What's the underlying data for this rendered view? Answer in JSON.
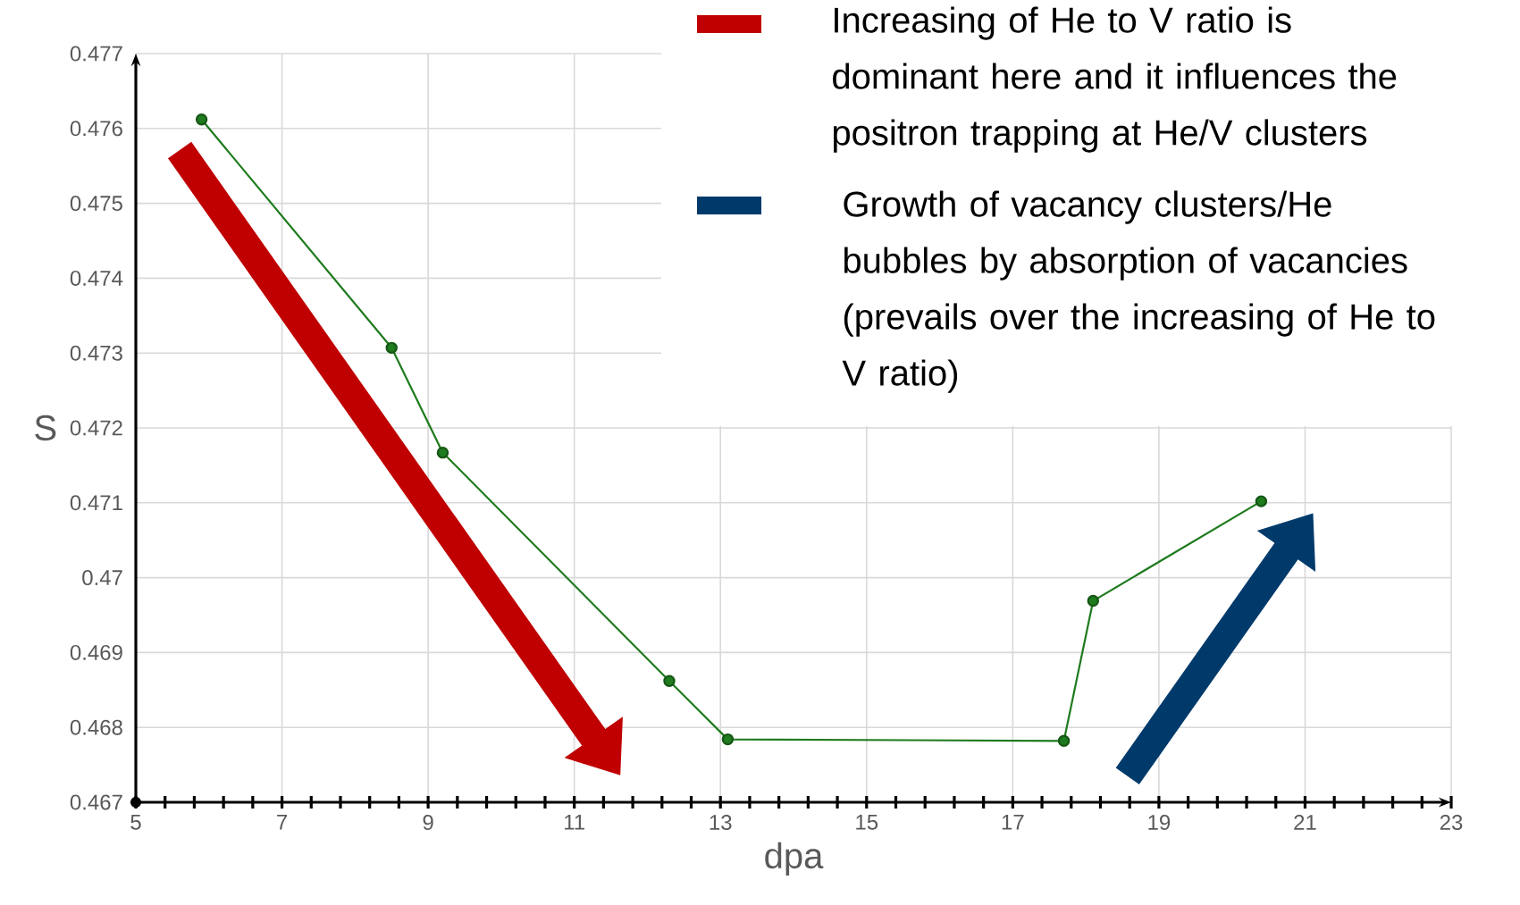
{
  "chart_data": {
    "type": "line",
    "xlabel": "dpa",
    "ylabel": "S",
    "x": [
      5.9,
      8.5,
      9.2,
      12.3,
      13.1,
      17.7,
      18.1,
      20.4
    ],
    "values": [
      0.47612,
      0.47307,
      0.47167,
      0.46862,
      0.46784,
      0.46782,
      0.46969,
      0.47102
    ],
    "color": "#1e7b1e",
    "marker": "circle",
    "line_style": "solid",
    "grid": true,
    "xlim": [
      5,
      23
    ],
    "ylim": [
      0.467,
      0.477
    ],
    "xticks": [
      5,
      7,
      9,
      11,
      13,
      15,
      17,
      19,
      21,
      23
    ],
    "yticks": [
      0.467,
      0.468,
      0.469,
      0.47,
      0.471,
      0.472,
      0.473,
      0.474,
      0.475,
      0.476,
      0.477
    ],
    "annotations": [
      "Increasing of He to V ratio is dominant here and it influences the positron trapping at He/V clusters",
      "Growth of vacancy clusters/He bubbles by absorption of vacancies (prevails over the increasing of He to V ratio)"
    ]
  }
}
